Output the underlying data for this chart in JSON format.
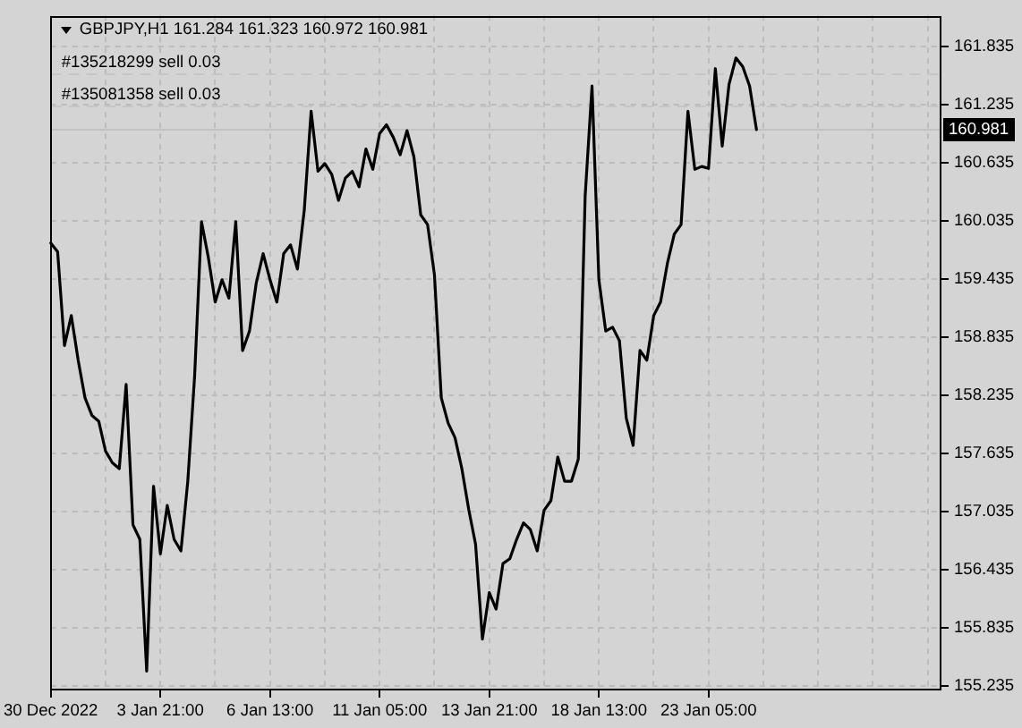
{
  "chart_data": {
    "type": "line",
    "title": "GBPJPY,H1 161.284 161.323 160.972 160.981",
    "categories": [
      "30 Dec 2022",
      null,
      null,
      null,
      null,
      null,
      null,
      null,
      null,
      null,
      null,
      null,
      null,
      null,
      null,
      null,
      "3 Jan 21:00",
      null,
      null,
      null,
      null,
      null,
      null,
      null,
      null,
      null,
      null,
      null,
      null,
      null,
      null,
      null,
      "6 Jan 13:00",
      null,
      null,
      null,
      null,
      null,
      null,
      null,
      null,
      null,
      null,
      null,
      null,
      null,
      null,
      null,
      "11 Jan 05:00",
      null,
      null,
      null,
      null,
      null,
      null,
      null,
      null,
      null,
      null,
      null,
      null,
      null,
      null,
      null,
      "13 Jan 21:00",
      null,
      null,
      null,
      null,
      null,
      null,
      null,
      null,
      null,
      null,
      null,
      null,
      null,
      null,
      null,
      "18 Jan 13:00",
      null,
      null,
      null,
      null,
      null,
      null,
      null,
      null,
      null,
      null,
      null,
      null,
      null,
      null,
      null,
      "23 Jan 05:00",
      null,
      null,
      null,
      null,
      null,
      null,
      null,
      null,
      null,
      null,
      null,
      null,
      null,
      null,
      null,
      null,
      null,
      null,
      null,
      null,
      null,
      null,
      null,
      null,
      null,
      null,
      null,
      null,
      null,
      null,
      null,
      null,
      null,
      null
    ],
    "series": [
      {
        "color": "#000000",
        "values": [
          159.81,
          159.72,
          158.75,
          159.06,
          158.6,
          158.21,
          158.03,
          157.97,
          157.66,
          157.54,
          157.48,
          158.35,
          156.9,
          156.75,
          155.39,
          157.3,
          156.6,
          157.1,
          156.75,
          156.63,
          157.35,
          158.44,
          160.03,
          159.66,
          159.2,
          159.43,
          159.24,
          160.03,
          158.7,
          158.9,
          159.4,
          159.7,
          159.43,
          159.2,
          159.7,
          159.79,
          159.54,
          160.15,
          161.17,
          160.55,
          160.63,
          160.52,
          160.25,
          160.48,
          160.55,
          160.39,
          160.78,
          160.57,
          160.94,
          161.03,
          160.9,
          160.72,
          160.97,
          160.7,
          160.1,
          160.0,
          159.48,
          158.21,
          157.95,
          157.8,
          157.48,
          157.06,
          156.7,
          155.72,
          156.2,
          156.03,
          156.5,
          156.55,
          156.75,
          156.92,
          156.85,
          156.63,
          157.05,
          157.15,
          157.6,
          157.35,
          157.35,
          157.58,
          160.3,
          161.43,
          159.43,
          158.9,
          158.94,
          158.8,
          158.0,
          157.72,
          158.7,
          158.6,
          159.06,
          159.2,
          159.6,
          159.9,
          160.0,
          161.17,
          160.57,
          160.6,
          160.58,
          161.61,
          160.81,
          161.45,
          161.72,
          161.63,
          161.43,
          160.98,
          null,
          null,
          null,
          null,
          null,
          null,
          null,
          null,
          null,
          null,
          null,
          null,
          null,
          null,
          null,
          null,
          null,
          null,
          null,
          null,
          null,
          null,
          null,
          null,
          null,
          null,
          null
        ]
      }
    ],
    "ylim": [
      155.19,
      162.16
    ],
    "yticks": [
      155.235,
      155.835,
      156.435,
      157.035,
      157.635,
      158.235,
      158.835,
      159.435,
      160.035,
      160.635,
      161.235,
      161.835
    ],
    "ref_lines": [
      {
        "axis": "y",
        "value": 161.57,
        "label": "#135218299 sell 0.03",
        "line_style": "dashed",
        "color": "#c6c6c6"
      },
      {
        "axis": "y",
        "value": 161.235,
        "label": "#135081358 sell 0.03",
        "line_style": "dashed",
        "color": "#c6c6c6"
      },
      {
        "axis": "y",
        "value": 160.981,
        "label": "160.981",
        "line_style": "solid",
        "color": "#c2c2c2"
      }
    ],
    "grid": true,
    "legend": false,
    "marker": "none",
    "line_style": "solid"
  }
}
